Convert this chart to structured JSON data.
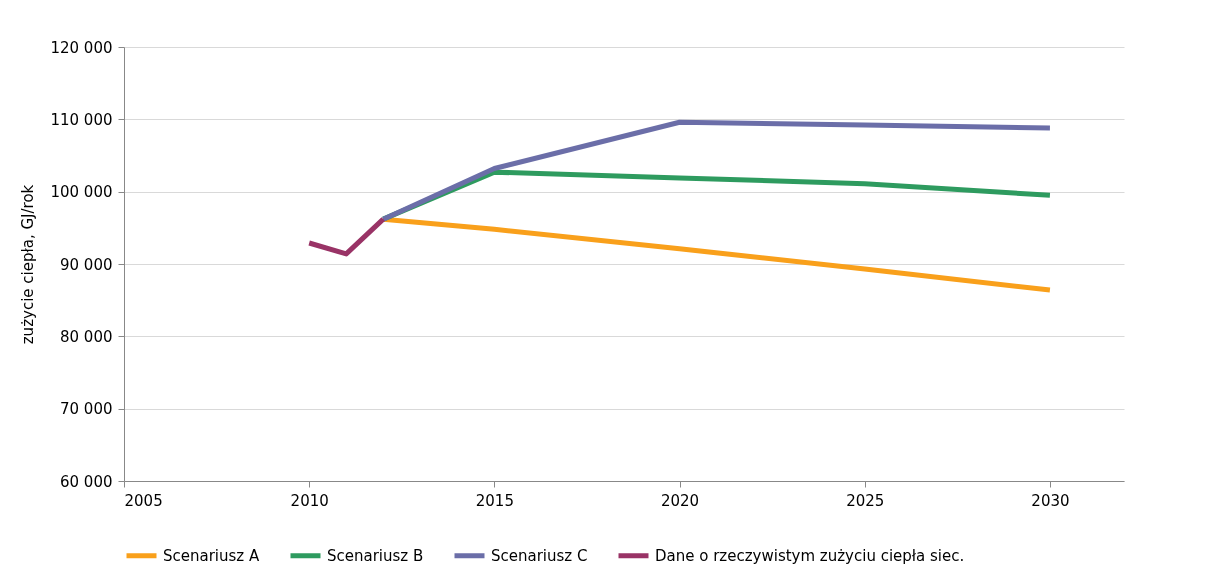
{
  "chart_data": {
    "type": "line",
    "ylabel": "zużycie ciepła, GJ/rok",
    "xlim": [
      2005,
      2032
    ],
    "xticks": [
      2005,
      2010,
      2015,
      2020,
      2025,
      2030
    ],
    "ylim": [
      60000,
      120000
    ],
    "yticks": [
      {
        "value": 60000,
        "label": "60 000"
      },
      {
        "value": 70000,
        "label": "70 000"
      },
      {
        "value": 80000,
        "label": "80 000"
      },
      {
        "value": 90000,
        "label": "90 000"
      },
      {
        "value": 100000,
        "label": "100 000"
      },
      {
        "value": 110000,
        "label": "110 000"
      },
      {
        "value": 120000,
        "label": "120 000"
      }
    ],
    "grid": "y",
    "legend": "bottom",
    "marker": "none",
    "line_style": "solid",
    "series": [
      {
        "name": "Scenariusz A",
        "color": "#f9a01b",
        "x": [
          2012,
          2015,
          2020,
          2025,
          2030
        ],
        "values": [
          96200,
          94800,
          92100,
          89300,
          86400
        ]
      },
      {
        "name": "Scenariusz B",
        "color": "#2e9b5f",
        "x": [
          2012,
          2015,
          2020,
          2025,
          2030
        ],
        "values": [
          96200,
          102700,
          101900,
          101100,
          99500
        ]
      },
      {
        "name": "Scenariusz C",
        "color": "#6b6ea8",
        "x": [
          2012,
          2015,
          2020,
          2025,
          2030
        ],
        "values": [
          96200,
          103200,
          109600,
          109200,
          108800
        ]
      },
      {
        "name": "Dane o rzeczywistym zużyciu ciepła siec.",
        "color": "#993366",
        "x": [
          2010,
          2011,
          2012
        ],
        "values": [
          92900,
          91400,
          96200
        ]
      }
    ]
  }
}
